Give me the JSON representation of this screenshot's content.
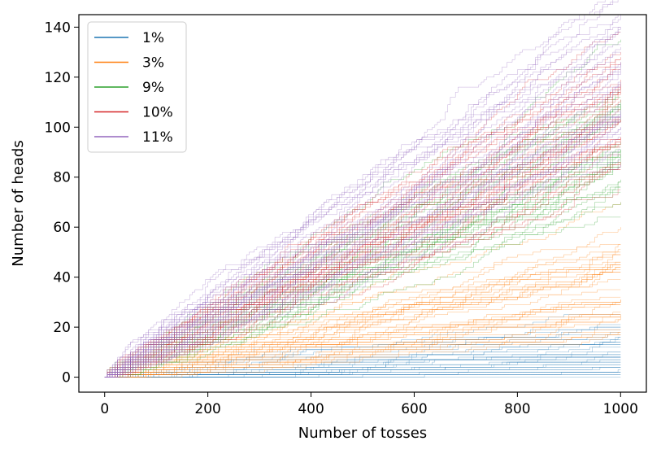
{
  "chart_data": {
    "type": "line",
    "title": "",
    "xlabel": "Number of tosses",
    "ylabel": "Number of heads",
    "xlim": [
      -50,
      1050
    ],
    "ylim": [
      -6,
      145
    ],
    "xticks": [
      0,
      200,
      400,
      600,
      800,
      1000
    ],
    "yticks": [
      0,
      20,
      40,
      60,
      80,
      100,
      120,
      140
    ],
    "grid": false,
    "legend_position": "top-left",
    "n_tosses": 1000,
    "runs_per_series": 40,
    "series": [
      {
        "name": "1%",
        "color": "#1f77b4",
        "rate": 0.01,
        "final_min": 3,
        "final_max": 16,
        "final_mean": 10
      },
      {
        "name": "3%",
        "color": "#ff7f0e",
        "rate": 0.03,
        "final_min": 19,
        "final_max": 46,
        "final_mean": 30
      },
      {
        "name": "9%",
        "color": "#2ca02c",
        "rate": 0.09,
        "final_min": 73,
        "final_max": 110,
        "final_mean": 90
      },
      {
        "name": "10%",
        "color": "#d62728",
        "rate": 0.1,
        "final_min": 83,
        "final_max": 122,
        "final_mean": 100
      },
      {
        "name": "11%",
        "color": "#9467bd",
        "rate": 0.11,
        "final_min": 92,
        "final_max": 138,
        "final_mean": 110
      }
    ]
  }
}
